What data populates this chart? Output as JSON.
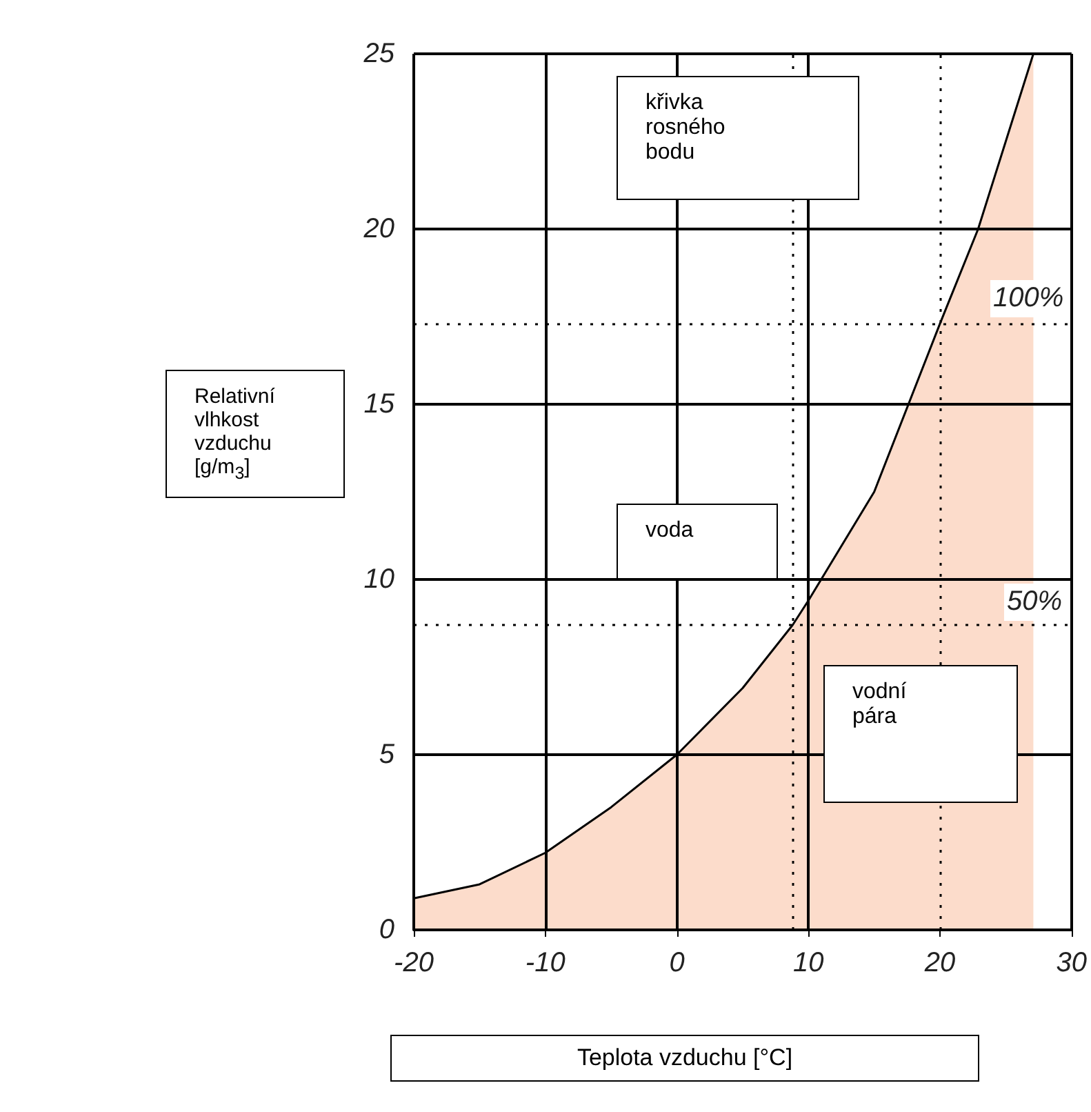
{
  "chart_data": {
    "type": "area",
    "xlabel": "Teplota vzduchu [°C]",
    "ylabel": "Relativní vlhkost vzduchu [g/m$_{3}$]",
    "series": [
      {
        "color": "#fcdccb",
        "x": [
          -20,
          -15,
          -10,
          -5,
          0,
          5,
          8.8,
          10,
          15,
          20,
          22.9,
          25,
          27.1
        ],
        "values": [
          0.9,
          1.3,
          2.2,
          3.5,
          5,
          6.9,
          8.7,
          9.4,
          12.5,
          17.3,
          20,
          22.5,
          25
        ]
      }
    ],
    "xlim": [
      -20,
      30
    ],
    "xticks": [
      -20,
      -10,
      0,
      10,
      20,
      30
    ],
    "ylim": [
      0,
      25
    ],
    "yticks": [
      0,
      5,
      10,
      15,
      20,
      25
    ],
    "grid": true,
    "marker": "none",
    "ref_lines": [
      {
        "axis": "y",
        "value": 17.3,
        "line_style": "dotted"
      },
      {
        "axis": "y",
        "value": 8.7,
        "line_style": "dotted"
      },
      {
        "axis": "x",
        "value": 20,
        "line_style": "dotted"
      },
      {
        "axis": "x",
        "value": 8.8,
        "line_style": "dotted"
      }
    ],
    "annotations": [
      "křivka rosného bodu",
      "voda",
      "vodní pára",
      "100%",
      "50%"
    ]
  }
}
